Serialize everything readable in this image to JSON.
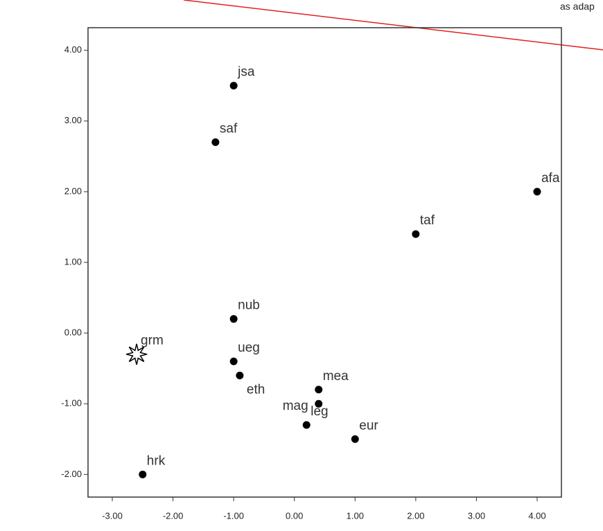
{
  "header_fragment": "as adap",
  "chart_data": {
    "type": "scatter",
    "x": [
      -1.0,
      -1.3,
      4.0,
      2.0,
      -1.0,
      -2.6,
      -1.0,
      -0.9,
      0.4,
      0.4,
      0.2,
      1.0,
      -2.5
    ],
    "y": [
      3.5,
      2.7,
      2.0,
      1.4,
      0.2,
      -0.3,
      -0.4,
      -0.6,
      -0.8,
      -1.0,
      -1.3,
      -1.5,
      -2.0
    ],
    "labels": [
      "jsa",
      "saf",
      "afa",
      "taf",
      "nub",
      "grm",
      "ueg",
      "eth",
      "mea",
      "mag",
      "leg",
      "eur",
      "hrk"
    ],
    "markers": [
      "circle",
      "circle",
      "circle",
      "circle",
      "circle",
      "star",
      "circle",
      "circle",
      "circle",
      "circle",
      "circle",
      "circle",
      "circle"
    ],
    "color": "#000000",
    "xlim": [
      -3.4,
      4.4
    ],
    "ylim": [
      -2.32,
      4.32
    ],
    "xticks": [
      {
        "value": -3,
        "label": "-3.00"
      },
      {
        "value": -2,
        "label": "-2.00"
      },
      {
        "value": -1,
        "label": "-1.00"
      },
      {
        "value": 0,
        "label": "0.00"
      },
      {
        "value": 1,
        "label": "1.00"
      },
      {
        "value": 2,
        "label": "2.00"
      },
      {
        "value": 3,
        "label": "3.00"
      },
      {
        "value": 4,
        "label": "4.00"
      }
    ],
    "yticks": [
      {
        "value": -2,
        "label": "-2.00"
      },
      {
        "value": -1,
        "label": "-1.00"
      },
      {
        "value": 0,
        "label": "0.00"
      },
      {
        "value": 1,
        "label": "1.00"
      },
      {
        "value": 2,
        "label": "2.00"
      },
      {
        "value": 3,
        "label": "3.00"
      },
      {
        "value": 4,
        "label": "4.00"
      }
    ]
  }
}
